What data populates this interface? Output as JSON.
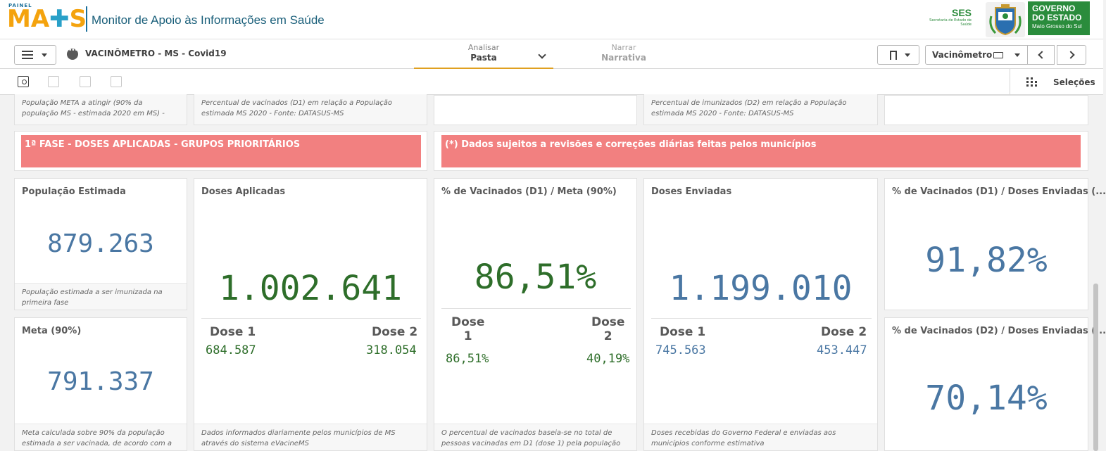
{
  "header": {
    "logo_painel": "PAINEL",
    "logo_text_m": "MA",
    "logo_text_s": "S",
    "title": "Monitor de Apoio às Informações em Saúde",
    "ses_title": "SES",
    "ses_sub": "Secretaria de Estado de Saúde",
    "gov_line1": "GOVERNO",
    "gov_line2": "DO ESTADO",
    "gov_line3": "Mato Grosso do Sul"
  },
  "toolbar": {
    "app_name": "VACINÔMETRO - MS - Covid19",
    "tab_analisar_sub": "Analisar",
    "tab_analisar_main": "Pasta",
    "tab_narrar_sub": "Narrar",
    "tab_narrar_main": "Narrativa",
    "sheet_label": "Vacinômetro"
  },
  "selbar": {
    "selections_label": "Seleções"
  },
  "top_row": {
    "c1_foot": "População META a atingir (90% da população MS - estimada 2020 em MS) -",
    "c2_foot": "Percentual de vacinados (D1) em relação a População estimada MS 2020 - Fonte: DATASUS-MS",
    "c4_foot": "Percentual de imunizados (D2) em relação a População estimada MS 2020 - Fonte: DATASUS-MS"
  },
  "banners": {
    "left": "1ª FASE - DOSES APLICADAS - GRUPOS PRIORITÁRIOS",
    "right": "(*) Dados sujeitos a revisões e correções diárias feitas pelos municípios"
  },
  "cards": {
    "pop": {
      "title": "População Estimada",
      "value": "879.263",
      "foot": "População estimada a ser imunizada na primeira fase"
    },
    "meta": {
      "title": "Meta (90%)",
      "value": "791.337",
      "foot": "Meta calculada sobre 90% da população estimada a ser vacinada, de acordo com a"
    },
    "doses_aplicadas": {
      "title": "Doses Aplicadas",
      "value": "1.002.641",
      "dose1_label": "Dose 1",
      "dose1_value": "684.587",
      "dose2_label": "Dose 2",
      "dose2_value": "318.054",
      "foot": "Dados informados diariamente pelos municípios de MS através do sistema eVacineMS"
    },
    "pct_meta": {
      "title": "% de Vacinados (D1) / Meta (90%)",
      "value": "86,51%",
      "dose1_label_a": "Dose",
      "dose1_label_b": "1",
      "dose1_value": "86,51%",
      "dose2_label_a": "Dose",
      "dose2_label_b": "2",
      "dose2_value": "40,19%",
      "foot": "O percentual de vacinados baseia-se no total de pessoas vacinadas em D1 (dose 1) pela população"
    },
    "doses_enviadas": {
      "title": "Doses Enviadas",
      "value": "1.199.010",
      "dose1_label": "Dose 1",
      "dose1_value": "745.563",
      "dose2_label": "Dose 2",
      "dose2_value": "453.447",
      "foot": "Doses recebidas do Governo Federal e enviadas aos municípios conforme estimativa"
    },
    "pct_enviadas_d1": {
      "title": "% de Vacinados (D1) / Doses Enviadas (...",
      "value": "91,82%"
    },
    "pct_enviadas_d2": {
      "title": "% de Vacinados (D2) / Doses Enviadas (...",
      "value": "70,14%"
    }
  },
  "colors": {
    "accent": "#e0a020",
    "kpi_blue": "#4a77a3",
    "kpi_green": "#2e6e2a",
    "banner": "#f28080",
    "gov_green": "#2a8c3c"
  }
}
